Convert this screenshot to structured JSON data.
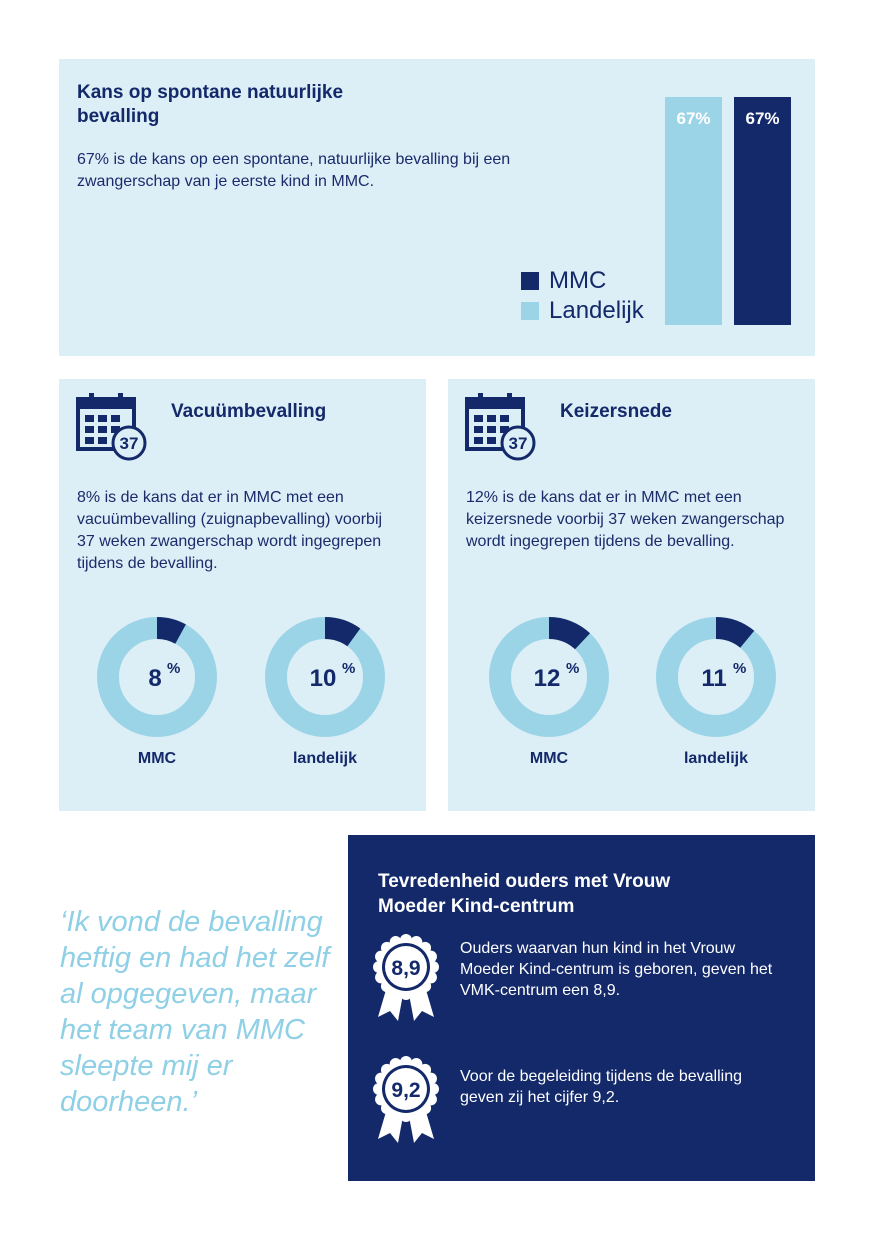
{
  "top_panel": {
    "title": "Kans op spontane natuurlijke bevalling",
    "description": "67% is de kans op een spontane, natuurlijke bevalling bij een zwangerschap van je eerste kind in MMC.",
    "legend": [
      {
        "label": "MMC",
        "color": "#13296a"
      },
      {
        "label": "Landelijk",
        "color": "#9cd4e7"
      }
    ]
  },
  "chart_data": [
    {
      "type": "bar",
      "categories": [
        "Landelijk",
        "MMC"
      ],
      "values": [
        67,
        67
      ],
      "data_labels": [
        "67%",
        "67%"
      ],
      "colors": [
        "#9cd4e7",
        "#13296a"
      ],
      "ylim": [
        0,
        67
      ],
      "legend": "left"
    },
    {
      "type": "pie",
      "title": "Vacuümbevalling",
      "categories": [
        "MMC",
        "landelijk"
      ],
      "values": [
        8,
        10
      ],
      "data_labels": [
        "8",
        "10"
      ],
      "unit": "%"
    },
    {
      "type": "pie",
      "title": "Keizersnede",
      "categories": [
        "MMC",
        "landelijk"
      ],
      "values": [
        12,
        11
      ],
      "data_labels": [
        "12",
        "11"
      ],
      "unit": "%"
    }
  ],
  "vacuum": {
    "title": "Vacuümbevalling",
    "calendar_number": "37",
    "icon": "calendar-icon",
    "description": "8% is de kans dat er in MMC met een vacuümbevalling (zuignapbevalling) voorbij 37 weken zwangerschap wordt ingegrepen tijdens de bevalling.",
    "donuts": [
      {
        "value": "8",
        "unit": "%",
        "label": "MMC"
      },
      {
        "value": "10",
        "unit": "%",
        "label": "landelijk"
      }
    ]
  },
  "caesarean": {
    "title": "Keizersnede",
    "calendar_number": "37",
    "icon": "calendar-icon",
    "description": "12% is de kans dat er in MMC met een keizersnede voorbij 37 weken zwangerschap wordt ingegrepen tijdens de bevalling.",
    "donuts": [
      {
        "value": "12",
        "unit": "%",
        "label": "MMC"
      },
      {
        "value": "11",
        "unit": "%",
        "label": "landelijk"
      }
    ]
  },
  "quote": "‘Ik vond de bevalling heftig en had het zelf al opgegeven, maar het team van MMC sleepte mij er doorheen.’",
  "satisfaction": {
    "title": "Tevredenheid ouders met Vrouw Moeder Kind-centrum",
    "items": [
      {
        "score": "8,9",
        "icon": "rosette-icon",
        "text": "Ouders waarvan hun kind in het Vrouw Moeder Kind-centrum is geboren, geven het VMK-centrum een 8,9."
      },
      {
        "score": "9,2",
        "icon": "rosette-icon",
        "text": "Voor de begeleiding tijdens de bevalling geven zij het cijfer 9,2."
      }
    ]
  },
  "colors": {
    "navy": "#13296a",
    "light_blue": "#9cd4e7",
    "panel_bg": "#dceef6",
    "quote": "#8fd0e6"
  }
}
